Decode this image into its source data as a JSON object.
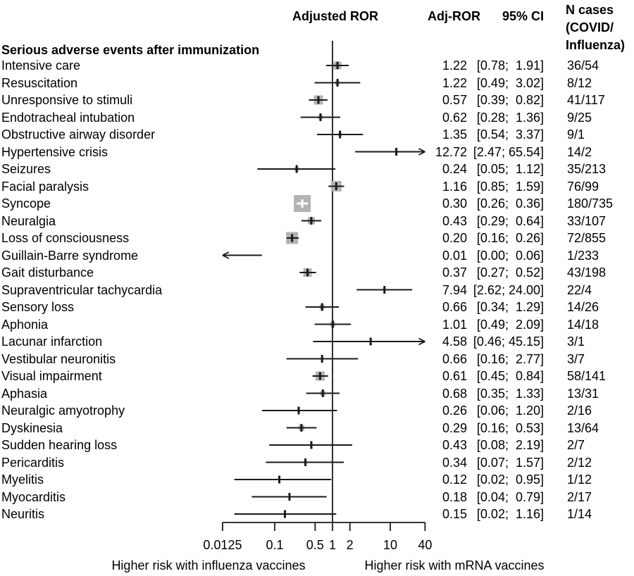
{
  "chart_data": {
    "type": "forest",
    "section_label": "Serious adverse events after immunization",
    "columns": {
      "plot": "Adjusted ROR",
      "est": "Adj-ROR",
      "ci": "95% CI",
      "n_header": "N cases\n(COVID/\nInfluenza)"
    },
    "x_axis": {
      "scale": "log10",
      "min": 0.0125,
      "max": 40,
      "ref_line": 1,
      "ticks": [
        0.0125,
        0.1,
        0.5,
        1,
        2,
        10,
        40
      ],
      "tick_labels": [
        "0.0125",
        "0.1",
        "0.5",
        "1",
        "2",
        "10",
        "40"
      ]
    },
    "footer": {
      "left": "Higher risk with influenza vaccines",
      "right": "Higher risk with mRNA vaccines"
    },
    "colors": {
      "square": "#b3b3b3",
      "line": "#1a1a1a",
      "text": "#000000",
      "plus": "#ffffff"
    },
    "rows": [
      {
        "label": "Intensive care",
        "est": 1.22,
        "lo": 0.78,
        "hi": 1.91,
        "est_text": "1.22",
        "ci_text": "[0.78;  1.91]",
        "n_text": "36/54",
        "square": 11
      },
      {
        "label": "Resuscitation",
        "est": 1.22,
        "lo": 0.49,
        "hi": 3.02,
        "est_text": "1.22",
        "ci_text": "[0.49;  3.02]",
        "n_text": "8/12",
        "square": 6
      },
      {
        "label": "Unresponsive to stimuli",
        "est": 0.57,
        "lo": 0.39,
        "hi": 0.82,
        "est_text": "0.57",
        "ci_text": "[0.39;  0.82]",
        "n_text": "41/117",
        "square": 13
      },
      {
        "label": "Endotracheal intubation",
        "est": 0.62,
        "lo": 0.28,
        "hi": 1.36,
        "est_text": "0.62",
        "ci_text": "[0.28;  1.36]",
        "n_text": "9/25",
        "square": 6
      },
      {
        "label": "Obstructive airway disorder",
        "est": 1.35,
        "lo": 0.54,
        "hi": 3.37,
        "est_text": "1.35",
        "ci_text": "[0.54;  3.37]",
        "n_text": "9/1",
        "square": 5
      },
      {
        "label": "Hypertensive crisis",
        "est": 12.72,
        "lo": 2.47,
        "hi": 65.54,
        "est_text": "12.72",
        "ci_text": "[2.47; 65.54]",
        "n_text": "14/2",
        "square": 4
      },
      {
        "label": "Seizures",
        "est": 0.24,
        "lo": 0.05,
        "hi": 1.12,
        "est_text": "0.24",
        "ci_text": "[0.05;  1.12]",
        "n_text": "35/213",
        "square": 6
      },
      {
        "label": "Facial paralysis",
        "est": 1.16,
        "lo": 0.85,
        "hi": 1.59,
        "est_text": "1.16",
        "ci_text": "[0.85;  1.59]",
        "n_text": "76/99",
        "square": 15
      },
      {
        "label": "Syncope",
        "est": 0.3,
        "lo": 0.26,
        "hi": 0.36,
        "est_text": "0.30",
        "ci_text": "[0.26;  0.36]",
        "n_text": "180/735",
        "square": 24
      },
      {
        "label": "Neuralgia",
        "est": 0.43,
        "lo": 0.29,
        "hi": 0.64,
        "est_text": "0.43",
        "ci_text": "[0.29;  0.64]",
        "n_text": "33/107",
        "square": 10
      },
      {
        "label": "Loss of consciousness",
        "est": 0.2,
        "lo": 0.16,
        "hi": 0.26,
        "est_text": "0.20",
        "ci_text": "[0.16;  0.26]",
        "n_text": "72/855",
        "square": 17
      },
      {
        "label": "Guillain-Barre syndrome",
        "est": 0.01,
        "lo": 0.0,
        "hi": 0.06,
        "est_text": "0.01",
        "ci_text": "[0.00;  0.06]",
        "n_text": "1/233",
        "square": 0
      },
      {
        "label": "Gait disturbance",
        "est": 0.37,
        "lo": 0.27,
        "hi": 0.52,
        "est_text": "0.37",
        "ci_text": "[0.27;  0.52]",
        "n_text": "43/198",
        "square": 12
      },
      {
        "label": "Supraventricular tachycardia",
        "est": 7.94,
        "lo": 2.62,
        "hi": 24.0,
        "est_text": "7.94",
        "ci_text": "[2.62; 24.00]",
        "n_text": "22/4",
        "square": 4
      },
      {
        "label": "Sensory loss",
        "est": 0.66,
        "lo": 0.34,
        "hi": 1.29,
        "est_text": "0.66",
        "ci_text": "[0.34;  1.29]",
        "n_text": "14/26",
        "square": 7
      },
      {
        "label": "Aphonia",
        "est": 1.01,
        "lo": 0.49,
        "hi": 2.09,
        "est_text": "1.01",
        "ci_text": "[0.49;  2.09]",
        "n_text": "14/18",
        "square": 7
      },
      {
        "label": "Lacunar infarction",
        "est": 4.58,
        "lo": 0.46,
        "hi": 45.15,
        "est_text": "4.58",
        "ci_text": "[0.46; 45.15]",
        "n_text": "3/1",
        "square": 3
      },
      {
        "label": "Vestibular neuronitis",
        "est": 0.66,
        "lo": 0.16,
        "hi": 2.77,
        "est_text": "0.66",
        "ci_text": "[0.16;  2.77]",
        "n_text": "3/7",
        "square": 4
      },
      {
        "label": "Visual impairment",
        "est": 0.61,
        "lo": 0.45,
        "hi": 0.84,
        "est_text": "0.61",
        "ci_text": "[0.45;  0.84]",
        "n_text": "58/141",
        "square": 13
      },
      {
        "label": "Aphasia",
        "est": 0.68,
        "lo": 0.35,
        "hi": 1.33,
        "est_text": "0.68",
        "ci_text": "[0.35;  1.33]",
        "n_text": "13/31",
        "square": 7
      },
      {
        "label": "Neuralgic amyotrophy",
        "est": 0.26,
        "lo": 0.06,
        "hi": 1.2,
        "est_text": "0.26",
        "ci_text": "[0.06;  1.20]",
        "n_text": "2/16",
        "square": 4
      },
      {
        "label": "Dyskinesia",
        "est": 0.29,
        "lo": 0.16,
        "hi": 0.53,
        "est_text": "0.29",
        "ci_text": "[0.16;  0.53]",
        "n_text": "13/64",
        "square": 8
      },
      {
        "label": "Sudden hearing loss",
        "est": 0.43,
        "lo": 0.08,
        "hi": 2.19,
        "est_text": "0.43",
        "ci_text": "[0.08;  2.19]",
        "n_text": "2/7",
        "square": 4
      },
      {
        "label": "Pericarditis",
        "est": 0.34,
        "lo": 0.07,
        "hi": 1.57,
        "est_text": "0.34",
        "ci_text": "[0.07;  1.57]",
        "n_text": "2/12",
        "square": 4
      },
      {
        "label": "Myelitis",
        "est": 0.12,
        "lo": 0.02,
        "hi": 0.95,
        "est_text": "0.12",
        "ci_text": "[0.02;  0.95]",
        "n_text": "1/12",
        "square": 3
      },
      {
        "label": "Myocarditis",
        "est": 0.18,
        "lo": 0.04,
        "hi": 0.79,
        "est_text": "0.18",
        "ci_text": "[0.04;  0.79]",
        "n_text": "2/17",
        "square": 3
      },
      {
        "label": "Neuritis",
        "est": 0.15,
        "lo": 0.02,
        "hi": 1.16,
        "est_text": "0.15",
        "ci_text": "[0.02;  1.16]",
        "n_text": "1/14",
        "square": 3
      }
    ]
  }
}
